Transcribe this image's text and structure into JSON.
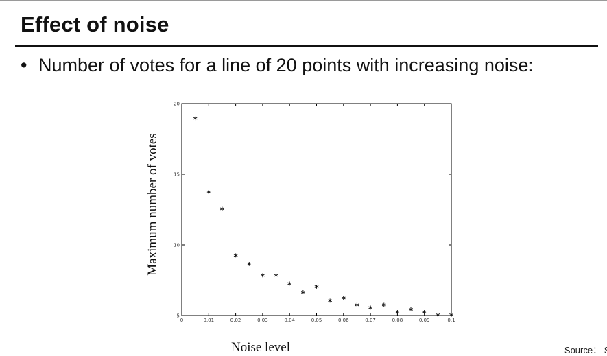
{
  "slide": {
    "title": "Effect of noise",
    "bullet": "Number of votes for a line of 20 points with increasing noise:",
    "source": "Source： S."
  },
  "chart_data": {
    "type": "scatter",
    "marker": "*",
    "xlabel": "Noise level",
    "ylabel": "Maximum number of votes",
    "xlim": [
      0,
      0.1
    ],
    "ylim": [
      5,
      20
    ],
    "xticks": [
      0,
      0.01,
      0.02,
      0.03,
      0.04,
      0.05,
      0.06,
      0.07,
      0.08,
      0.09,
      0.1
    ],
    "xticklabels": [
      "0",
      "0.01",
      "0.02",
      "0.03",
      "0.04",
      "0.05",
      "0.06",
      "0.07",
      "0.08",
      "0.09",
      "0.1"
    ],
    "yticks": [
      5,
      10,
      15,
      20
    ],
    "yticklabels": [
      "5",
      "10",
      "15",
      "20"
    ],
    "grid": false,
    "points": [
      {
        "x": 0.005,
        "y": 18.9
      },
      {
        "x": 0.01,
        "y": 13.7
      },
      {
        "x": 0.015,
        "y": 12.5
      },
      {
        "x": 0.02,
        "y": 9.2
      },
      {
        "x": 0.025,
        "y": 8.6
      },
      {
        "x": 0.03,
        "y": 7.8
      },
      {
        "x": 0.035,
        "y": 7.8
      },
      {
        "x": 0.04,
        "y": 7.2
      },
      {
        "x": 0.045,
        "y": 6.6
      },
      {
        "x": 0.05,
        "y": 7.0
      },
      {
        "x": 0.055,
        "y": 6.0
      },
      {
        "x": 0.06,
        "y": 6.2
      },
      {
        "x": 0.065,
        "y": 5.7
      },
      {
        "x": 0.07,
        "y": 5.5
      },
      {
        "x": 0.075,
        "y": 5.7
      },
      {
        "x": 0.08,
        "y": 5.2
      },
      {
        "x": 0.085,
        "y": 5.4
      },
      {
        "x": 0.09,
        "y": 5.2
      },
      {
        "x": 0.095,
        "y": 5.0
      },
      {
        "x": 0.1,
        "y": 5.0
      }
    ]
  }
}
